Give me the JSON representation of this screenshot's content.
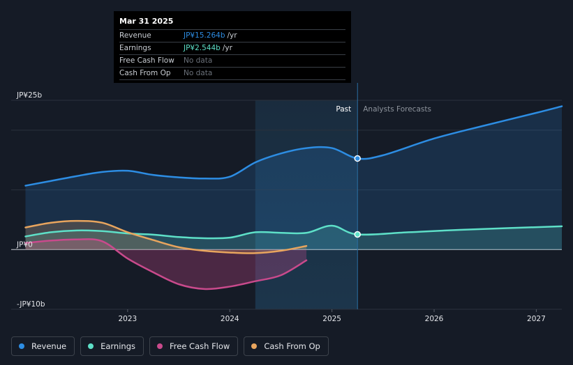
{
  "chart_data": {
    "type": "line",
    "title": "",
    "y_unit": "JPY billions",
    "ylim": [
      -10,
      25
    ],
    "y_tick_labels": [
      "JP¥25b",
      "JP¥0",
      "-JP¥10b"
    ],
    "x_tick_labels": [
      "2023",
      "2024",
      "2025",
      "2026",
      "2027"
    ],
    "x_ticks": [
      2023.0,
      2024.0,
      2025.0,
      2026.0,
      2027.0
    ],
    "xlim": [
      2021.8,
      2027.25
    ],
    "past_region": [
      2024.25,
      2025.25
    ],
    "past_label": "Past",
    "forecast_label": "Analysts Forecasts",
    "series": [
      {
        "name": "Revenue",
        "color": "#2d8de3",
        "points": [
          [
            2022.0,
            10.7
          ],
          [
            2022.25,
            11.5
          ],
          [
            2022.5,
            12.3
          ],
          [
            2022.75,
            13.0
          ],
          [
            2023.0,
            13.2
          ],
          [
            2023.25,
            12.5
          ],
          [
            2023.5,
            12.1
          ],
          [
            2023.75,
            11.9
          ],
          [
            2024.0,
            12.2
          ],
          [
            2024.25,
            14.6
          ],
          [
            2024.5,
            16.1
          ],
          [
            2024.75,
            17.0
          ],
          [
            2025.0,
            17.0
          ],
          [
            2025.25,
            15.264
          ]
        ],
        "forecast": [
          [
            2025.25,
            15.264
          ],
          [
            2025.5,
            15.8
          ],
          [
            2026.0,
            18.6
          ],
          [
            2026.5,
            20.8
          ],
          [
            2027.0,
            22.9
          ],
          [
            2027.25,
            24.0
          ]
        ]
      },
      {
        "name": "Earnings",
        "color": "#5ee0c8",
        "points": [
          [
            2022.0,
            2.2
          ],
          [
            2022.25,
            2.9
          ],
          [
            2022.5,
            3.2
          ],
          [
            2022.75,
            3.1
          ],
          [
            2023.0,
            2.7
          ],
          [
            2023.25,
            2.5
          ],
          [
            2023.5,
            2.1
          ],
          [
            2023.75,
            1.9
          ],
          [
            2024.0,
            2.0
          ],
          [
            2024.25,
            2.9
          ],
          [
            2024.5,
            2.8
          ],
          [
            2024.75,
            2.8
          ],
          [
            2025.0,
            4.0
          ],
          [
            2025.25,
            2.544
          ]
        ],
        "forecast": [
          [
            2025.25,
            2.544
          ],
          [
            2025.75,
            2.9
          ],
          [
            2026.25,
            3.3
          ],
          [
            2027.25,
            3.9
          ]
        ]
      },
      {
        "name": "Free Cash Flow",
        "color": "#c94a8c",
        "points": [
          [
            2022.0,
            1.1
          ],
          [
            2022.25,
            1.5
          ],
          [
            2022.5,
            1.7
          ],
          [
            2022.75,
            1.4
          ],
          [
            2023.0,
            -1.5
          ],
          [
            2023.25,
            -3.8
          ],
          [
            2023.5,
            -5.8
          ],
          [
            2023.75,
            -6.6
          ],
          [
            2024.0,
            -6.2
          ],
          [
            2024.25,
            -5.3
          ],
          [
            2024.5,
            -4.3
          ],
          [
            2024.75,
            -1.8
          ]
        ],
        "forecast": []
      },
      {
        "name": "Cash From Op",
        "color": "#e8a55e",
        "points": [
          [
            2022.0,
            3.7
          ],
          [
            2022.25,
            4.5
          ],
          [
            2022.5,
            4.8
          ],
          [
            2022.75,
            4.5
          ],
          [
            2023.0,
            2.9
          ],
          [
            2023.25,
            1.6
          ],
          [
            2023.5,
            0.4
          ],
          [
            2023.75,
            -0.2
          ],
          [
            2024.0,
            -0.5
          ],
          [
            2024.25,
            -0.6
          ],
          [
            2024.5,
            -0.2
          ],
          [
            2024.75,
            0.6
          ]
        ],
        "forecast": []
      }
    ],
    "highlight": {
      "x": 2025.25,
      "revenue": 15.264,
      "earnings": 2.544
    }
  },
  "tooltip": {
    "date": "Mar 31 2025",
    "rows": [
      {
        "label": "Revenue",
        "value": "JP¥15.264b",
        "unit": "/yr",
        "color": "#2d8de3"
      },
      {
        "label": "Earnings",
        "value": "JP¥2.544b",
        "unit": "/yr",
        "color": "#5ee0c8"
      },
      {
        "label": "Free Cash Flow",
        "value": "No data",
        "unit": "",
        "color": ""
      },
      {
        "label": "Cash From Op",
        "value": "No data",
        "unit": "",
        "color": ""
      }
    ]
  },
  "legend": [
    {
      "label": "Revenue",
      "color": "#2d8de3"
    },
    {
      "label": "Earnings",
      "color": "#5ee0c8"
    },
    {
      "label": "Free Cash Flow",
      "color": "#c94a8c"
    },
    {
      "label": "Cash From Op",
      "color": "#e8a55e"
    }
  ]
}
